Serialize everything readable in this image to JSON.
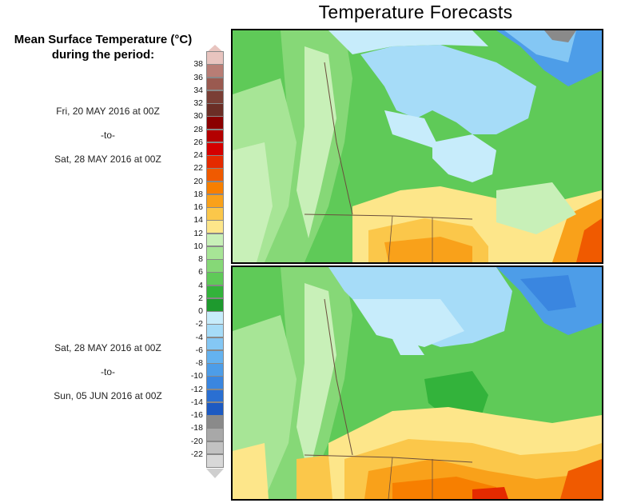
{
  "title": "Temperature Forecasts",
  "legend": {
    "title_line1": "Mean Surface Temperature (°C)",
    "title_line2": "during the period:",
    "ticks": [
      "38",
      "36",
      "34",
      "32",
      "30",
      "28",
      "26",
      "24",
      "22",
      "20",
      "18",
      "16",
      "14",
      "12",
      "10",
      "8",
      "6",
      "4",
      "2",
      "0",
      "-2",
      "-4",
      "-6",
      "-8",
      "-10",
      "-12",
      "-14",
      "-16",
      "-18",
      "-20",
      "-22"
    ],
    "colors": [
      "#e8c4bf",
      "#b87d75",
      "#9a5a50",
      "#7a3e35",
      "#6b2e26",
      "#8b0000",
      "#b30000",
      "#d40000",
      "#e52a00",
      "#f05a00",
      "#f77f00",
      "#f9a11a",
      "#fbc74a",
      "#fde68a",
      "#c8f0b8",
      "#a7e596",
      "#86d877",
      "#5fca58",
      "#33b33b",
      "#1e9a2e",
      "#c7ecfb",
      "#a6dcf8",
      "#84c7f4",
      "#64b2ef",
      "#4d9de8",
      "#3a86e0",
      "#2a6fd2",
      "#1d5ac2",
      "#8a8a8a",
      "#a8a8a8",
      "#c2c2c2",
      "#d8d8d8"
    ]
  },
  "periods": [
    {
      "start": "Fri, 20 MAY 2016 at 00Z",
      "sep": "-to-",
      "end": "Sat, 28 MAY 2016 at 00Z"
    },
    {
      "start": "Sat, 28 MAY 2016 at 00Z",
      "sep": "-to-",
      "end": "Sun, 05 JUN 2016 at 00Z"
    }
  ]
}
